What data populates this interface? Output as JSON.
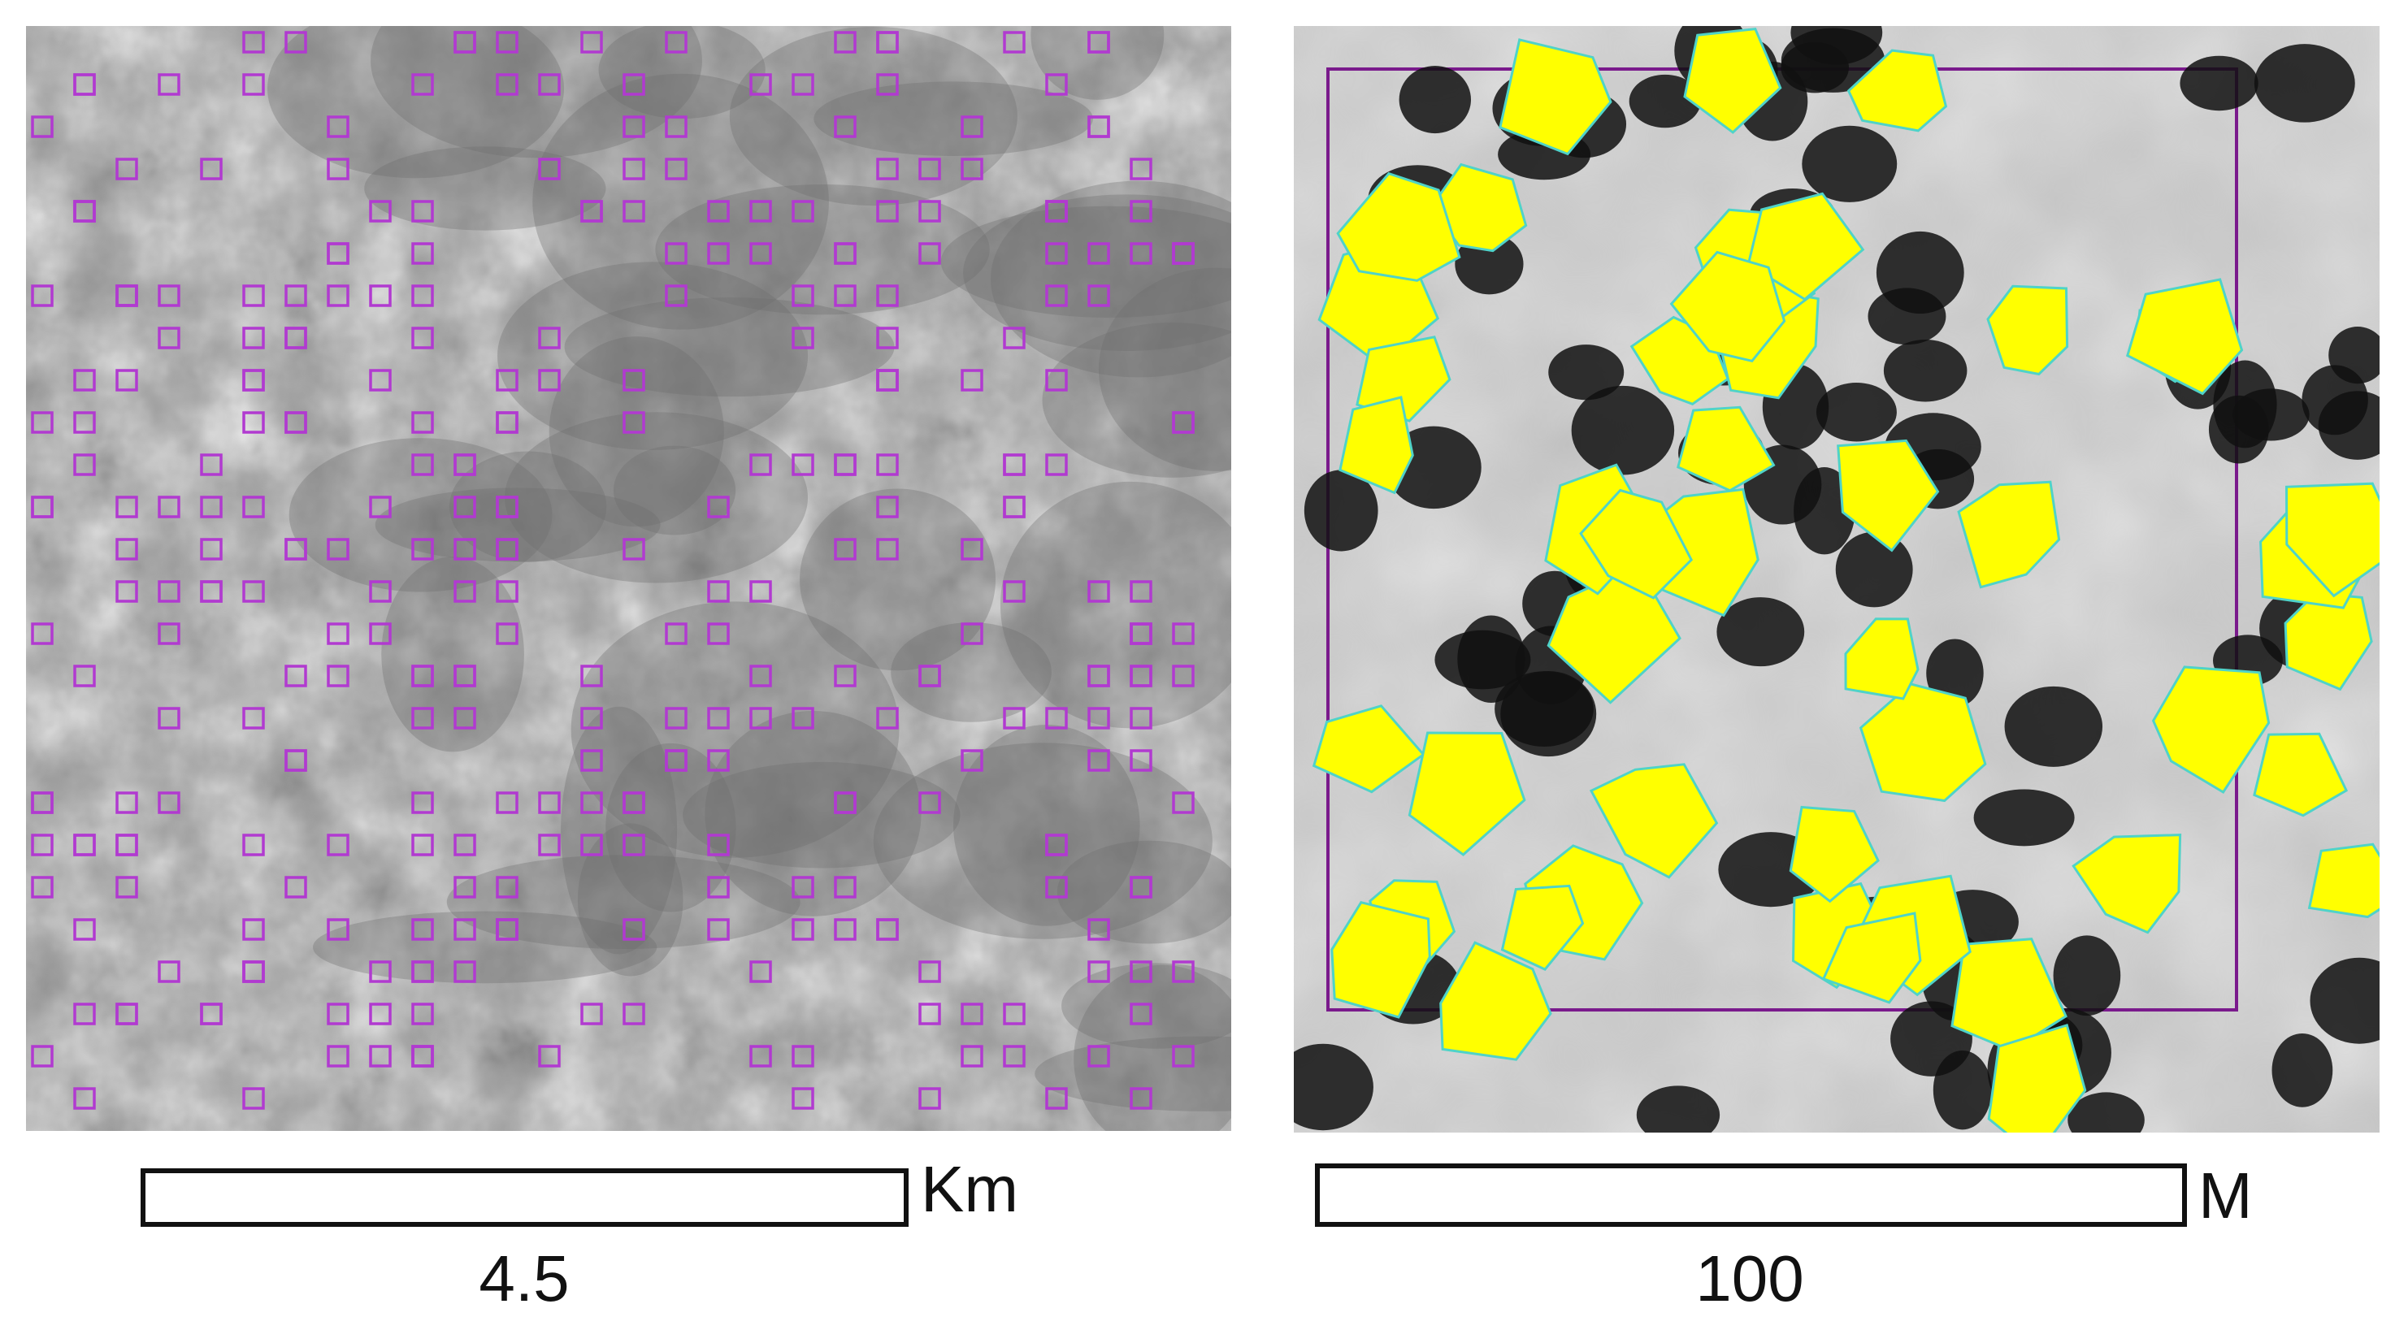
{
  "panels": [
    {
      "scale_bar": {
        "length": "4.5",
        "unit": "Km"
      }
    },
    {
      "scale_bar": {
        "length": "100",
        "unit": "M"
      }
    }
  ]
}
